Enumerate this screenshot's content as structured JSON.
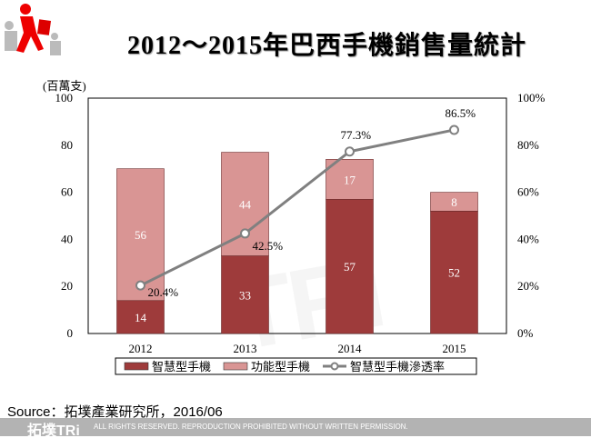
{
  "title": "2012～2015年巴西手機銷售量統計",
  "source": "Source：拓墣產業研究所，2016/06",
  "footer": {
    "brand": "拓墣TRi",
    "rights": "ALL RIGHTS RESERVED. REPRODUCTION PROHIBITED WITHOUT WRITTEN PERMISSION."
  },
  "chart_data": {
    "type": "bar",
    "stacked": true,
    "unit_label": "(百萬支)",
    "categories": [
      "2012",
      "2013",
      "2014",
      "2015"
    ],
    "ylim": [
      0,
      100
    ],
    "yticks": [
      "0",
      "20",
      "40",
      "60",
      "80",
      "100"
    ],
    "y2lim": [
      0,
      100
    ],
    "y2ticks": [
      "0%",
      "20%",
      "40%",
      "60%",
      "80%",
      "100%"
    ],
    "series": [
      {
        "name": "智慧型手機",
        "type": "bar",
        "values": [
          14,
          33,
          57,
          52
        ],
        "color": "#9e3b3b"
      },
      {
        "name": "功能型手機",
        "type": "bar",
        "values": [
          56,
          44,
          17,
          8
        ],
        "color": "#d99594"
      },
      {
        "name": "智慧型手機滲透率",
        "type": "line",
        "axis": "right",
        "values": [
          20.4,
          42.5,
          77.3,
          86.5
        ],
        "labels": [
          "20.4%",
          "42.5%",
          "77.3%",
          "86.5%"
        ],
        "color": "#808080"
      }
    ],
    "legend": "bottom",
    "grid": false
  }
}
